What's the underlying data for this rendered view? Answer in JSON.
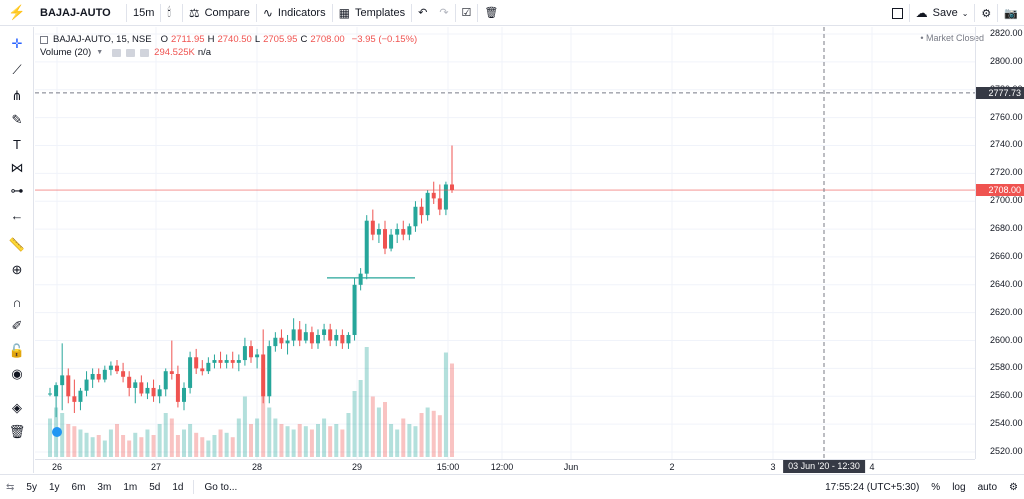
{
  "toolbar": {
    "symbol": "BAJAJ-AUTO",
    "interval": "15m",
    "compare": "Compare",
    "indicators": "Indicators",
    "templates": "Templates",
    "save": "Save"
  },
  "legend": {
    "title": "BAJAJ-AUTO, 15, NSE",
    "o_label": "O",
    "o": "2711.95",
    "h_label": "H",
    "h": "2740.50",
    "l_label": "L",
    "l": "2705.95",
    "c_label": "C",
    "c": "2708.00",
    "change": "−3.95 (−0.15%)",
    "volume_label": "Volume (20)",
    "volume_value": "294.525K",
    "volume_ma": "n/a",
    "market_status": "• Market Closed"
  },
  "price_axis": {
    "labels": [
      "2820.00",
      "2800.00",
      "2780.00",
      "2760.00",
      "2740.00",
      "2720.00",
      "2700.00",
      "2680.00",
      "2660.00",
      "2640.00",
      "2620.00",
      "2600.00",
      "2580.00",
      "2560.00",
      "2540.00",
      "2520.00"
    ],
    "crosshair_price": "2777.73",
    "last_price": "2708.00"
  },
  "time_axis": {
    "labels": [
      "26",
      "27",
      "28",
      "29",
      "15:00",
      "12:00",
      "Jun",
      "2",
      "3",
      "4"
    ],
    "crosshair_time": "03 Jun '20 - 12:30"
  },
  "bottombar": {
    "ranges": [
      "5y",
      "1y",
      "6m",
      "3m",
      "1m",
      "5d",
      "1d"
    ],
    "goto": "Go to...",
    "clock": "17:55:24 (UTC+5:30)",
    "percent": "%",
    "log": "log",
    "auto": "auto"
  },
  "colors": {
    "up": "#26a69a",
    "down": "#ef5350",
    "accent": "#2962ff"
  },
  "chart_data": {
    "type": "candlestick",
    "ylim": [
      2515,
      2825
    ],
    "candles": [
      {
        "o": 2562,
        "h": 2566,
        "l": 2560,
        "c": 2562
      },
      {
        "o": 2560,
        "h": 2570,
        "l": 2545,
        "c": 2568
      },
      {
        "o": 2568,
        "h": 2598,
        "l": 2550,
        "c": 2575
      },
      {
        "o": 2575,
        "h": 2580,
        "l": 2555,
        "c": 2560
      },
      {
        "o": 2560,
        "h": 2572,
        "l": 2548,
        "c": 2556
      },
      {
        "o": 2556,
        "h": 2566,
        "l": 2550,
        "c": 2564
      },
      {
        "o": 2564,
        "h": 2578,
        "l": 2560,
        "c": 2572
      },
      {
        "o": 2572,
        "h": 2580,
        "l": 2566,
        "c": 2576
      },
      {
        "o": 2576,
        "h": 2580,
        "l": 2570,
        "c": 2572
      },
      {
        "o": 2572,
        "h": 2582,
        "l": 2570,
        "c": 2579
      },
      {
        "o": 2579,
        "h": 2585,
        "l": 2575,
        "c": 2582
      },
      {
        "o": 2582,
        "h": 2586,
        "l": 2576,
        "c": 2578
      },
      {
        "o": 2578,
        "h": 2584,
        "l": 2570,
        "c": 2574
      },
      {
        "o": 2574,
        "h": 2578,
        "l": 2560,
        "c": 2566
      },
      {
        "o": 2566,
        "h": 2572,
        "l": 2555,
        "c": 2570
      },
      {
        "o": 2570,
        "h": 2575,
        "l": 2560,
        "c": 2562
      },
      {
        "o": 2562,
        "h": 2570,
        "l": 2558,
        "c": 2566
      },
      {
        "o": 2566,
        "h": 2572,
        "l": 2556,
        "c": 2560
      },
      {
        "o": 2560,
        "h": 2568,
        "l": 2555,
        "c": 2565
      },
      {
        "o": 2565,
        "h": 2580,
        "l": 2560,
        "c": 2578
      },
      {
        "o": 2578,
        "h": 2600,
        "l": 2572,
        "c": 2576
      },
      {
        "o": 2576,
        "h": 2582,
        "l": 2552,
        "c": 2556
      },
      {
        "o": 2556,
        "h": 2570,
        "l": 2550,
        "c": 2566
      },
      {
        "o": 2566,
        "h": 2592,
        "l": 2562,
        "c": 2588
      },
      {
        "o": 2588,
        "h": 2594,
        "l": 2576,
        "c": 2580
      },
      {
        "o": 2580,
        "h": 2586,
        "l": 2575,
        "c": 2578
      },
      {
        "o": 2578,
        "h": 2588,
        "l": 2576,
        "c": 2584
      },
      {
        "o": 2584,
        "h": 2590,
        "l": 2580,
        "c": 2586
      },
      {
        "o": 2586,
        "h": 2592,
        "l": 2580,
        "c": 2584
      },
      {
        "o": 2584,
        "h": 2590,
        "l": 2580,
        "c": 2586
      },
      {
        "o": 2586,
        "h": 2592,
        "l": 2580,
        "c": 2584
      },
      {
        "o": 2584,
        "h": 2590,
        "l": 2578,
        "c": 2586
      },
      {
        "o": 2586,
        "h": 2602,
        "l": 2582,
        "c": 2596
      },
      {
        "o": 2596,
        "h": 2600,
        "l": 2584,
        "c": 2588
      },
      {
        "o": 2588,
        "h": 2594,
        "l": 2580,
        "c": 2590
      },
      {
        "o": 2590,
        "h": 2608,
        "l": 2555,
        "c": 2560
      },
      {
        "o": 2560,
        "h": 2600,
        "l": 2555,
        "c": 2596
      },
      {
        "o": 2596,
        "h": 2606,
        "l": 2592,
        "c": 2602
      },
      {
        "o": 2602,
        "h": 2608,
        "l": 2594,
        "c": 2598
      },
      {
        "o": 2598,
        "h": 2604,
        "l": 2590,
        "c": 2600
      },
      {
        "o": 2600,
        "h": 2616,
        "l": 2596,
        "c": 2608
      },
      {
        "o": 2608,
        "h": 2614,
        "l": 2596,
        "c": 2600
      },
      {
        "o": 2600,
        "h": 2612,
        "l": 2598,
        "c": 2606
      },
      {
        "o": 2606,
        "h": 2610,
        "l": 2594,
        "c": 2598
      },
      {
        "o": 2598,
        "h": 2608,
        "l": 2594,
        "c": 2604
      },
      {
        "o": 2604,
        "h": 2612,
        "l": 2600,
        "c": 2608
      },
      {
        "o": 2608,
        "h": 2612,
        "l": 2596,
        "c": 2600
      },
      {
        "o": 2600,
        "h": 2608,
        "l": 2596,
        "c": 2604
      },
      {
        "o": 2604,
        "h": 2608,
        "l": 2594,
        "c": 2598
      },
      {
        "o": 2598,
        "h": 2606,
        "l": 2594,
        "c": 2604
      },
      {
        "o": 2604,
        "h": 2645,
        "l": 2600,
        "c": 2640
      },
      {
        "o": 2640,
        "h": 2652,
        "l": 2636,
        "c": 2648
      },
      {
        "o": 2648,
        "h": 2690,
        "l": 2644,
        "c": 2686
      },
      {
        "o": 2686,
        "h": 2694,
        "l": 2672,
        "c": 2676
      },
      {
        "o": 2676,
        "h": 2684,
        "l": 2670,
        "c": 2680
      },
      {
        "o": 2680,
        "h": 2686,
        "l": 2662,
        "c": 2666
      },
      {
        "o": 2666,
        "h": 2680,
        "l": 2664,
        "c": 2676
      },
      {
        "o": 2676,
        "h": 2684,
        "l": 2670,
        "c": 2680
      },
      {
        "o": 2680,
        "h": 2686,
        "l": 2672,
        "c": 2676
      },
      {
        "o": 2676,
        "h": 2684,
        "l": 2672,
        "c": 2682
      },
      {
        "o": 2682,
        "h": 2700,
        "l": 2678,
        "c": 2696
      },
      {
        "o": 2696,
        "h": 2702,
        "l": 2684,
        "c": 2690
      },
      {
        "o": 2690,
        "h": 2708,
        "l": 2686,
        "c": 2706
      },
      {
        "o": 2706,
        "h": 2714,
        "l": 2698,
        "c": 2702
      },
      {
        "o": 2702,
        "h": 2712,
        "l": 2690,
        "c": 2694
      },
      {
        "o": 2694,
        "h": 2714,
        "l": 2690,
        "c": 2712
      },
      {
        "o": 2712,
        "h": 2740,
        "l": 2706,
        "c": 2708
      }
    ],
    "volume_ratio": [
      0.35,
      0.45,
      0.4,
      0.3,
      0.28,
      0.25,
      0.22,
      0.18,
      0.2,
      0.15,
      0.25,
      0.3,
      0.2,
      0.15,
      0.22,
      0.18,
      0.25,
      0.2,
      0.3,
      0.4,
      0.35,
      0.2,
      0.25,
      0.3,
      0.22,
      0.18,
      0.15,
      0.2,
      0.25,
      0.22,
      0.18,
      0.35,
      0.55,
      0.3,
      0.35,
      0.8,
      0.45,
      0.35,
      0.3,
      0.28,
      0.25,
      0.3,
      0.28,
      0.25,
      0.3,
      0.35,
      0.28,
      0.3,
      0.25,
      0.4,
      0.6,
      0.7,
      1.0,
      0.55,
      0.45,
      0.5,
      0.3,
      0.25,
      0.35,
      0.3,
      0.28,
      0.4,
      0.45,
      0.42,
      0.38,
      0.95,
      0.85
    ]
  }
}
